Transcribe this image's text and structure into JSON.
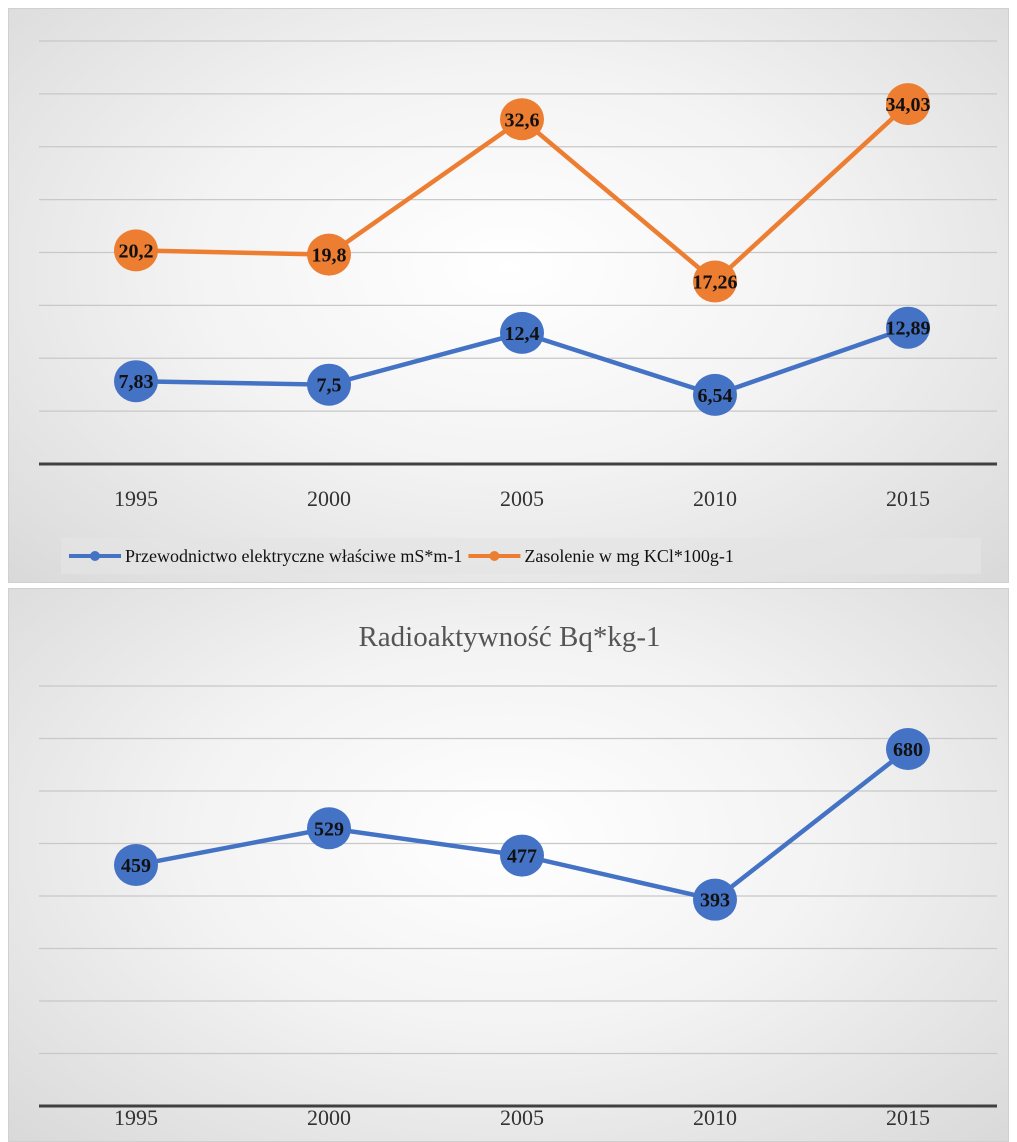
{
  "chart_data": [
    {
      "type": "line",
      "title": "",
      "xlabel": "",
      "ylabel": "",
      "categories": [
        "1995",
        "2000",
        "2005",
        "2010",
        "2015"
      ],
      "ylim": [
        0,
        40
      ],
      "grid": true,
      "legend": "bottom",
      "series": [
        {
          "name": "Przewodnictwo elektryczne właściwe mS*m-1",
          "values": [
            7.83,
            7.5,
            12.4,
            6.54,
            12.89
          ],
          "labels": [
            "7,83",
            "7,5",
            "12,4",
            "6,54",
            "12,89"
          ],
          "color": "#4472C4"
        },
        {
          "name": "Zasolenie w mg KCl*100g-1",
          "values": [
            20.2,
            19.8,
            32.6,
            17.26,
            34.03
          ],
          "labels": [
            "20,2",
            "19,8",
            "32,6",
            "17,26",
            "34,03"
          ],
          "color": "#ED7D31"
        }
      ]
    },
    {
      "type": "line",
      "title": "Radioaktywność  Bq*kg-1",
      "xlabel": "",
      "ylabel": "",
      "categories": [
        "1995",
        "2000",
        "2005",
        "2010",
        "2015"
      ],
      "ylim": [
        0,
        800
      ],
      "grid": true,
      "legend": "none",
      "series": [
        {
          "values": [
            459,
            529,
            477,
            393,
            680
          ],
          "labels": [
            "459",
            "529",
            "477",
            "393",
            "680"
          ],
          "color": "#4472C4"
        }
      ]
    }
  ]
}
